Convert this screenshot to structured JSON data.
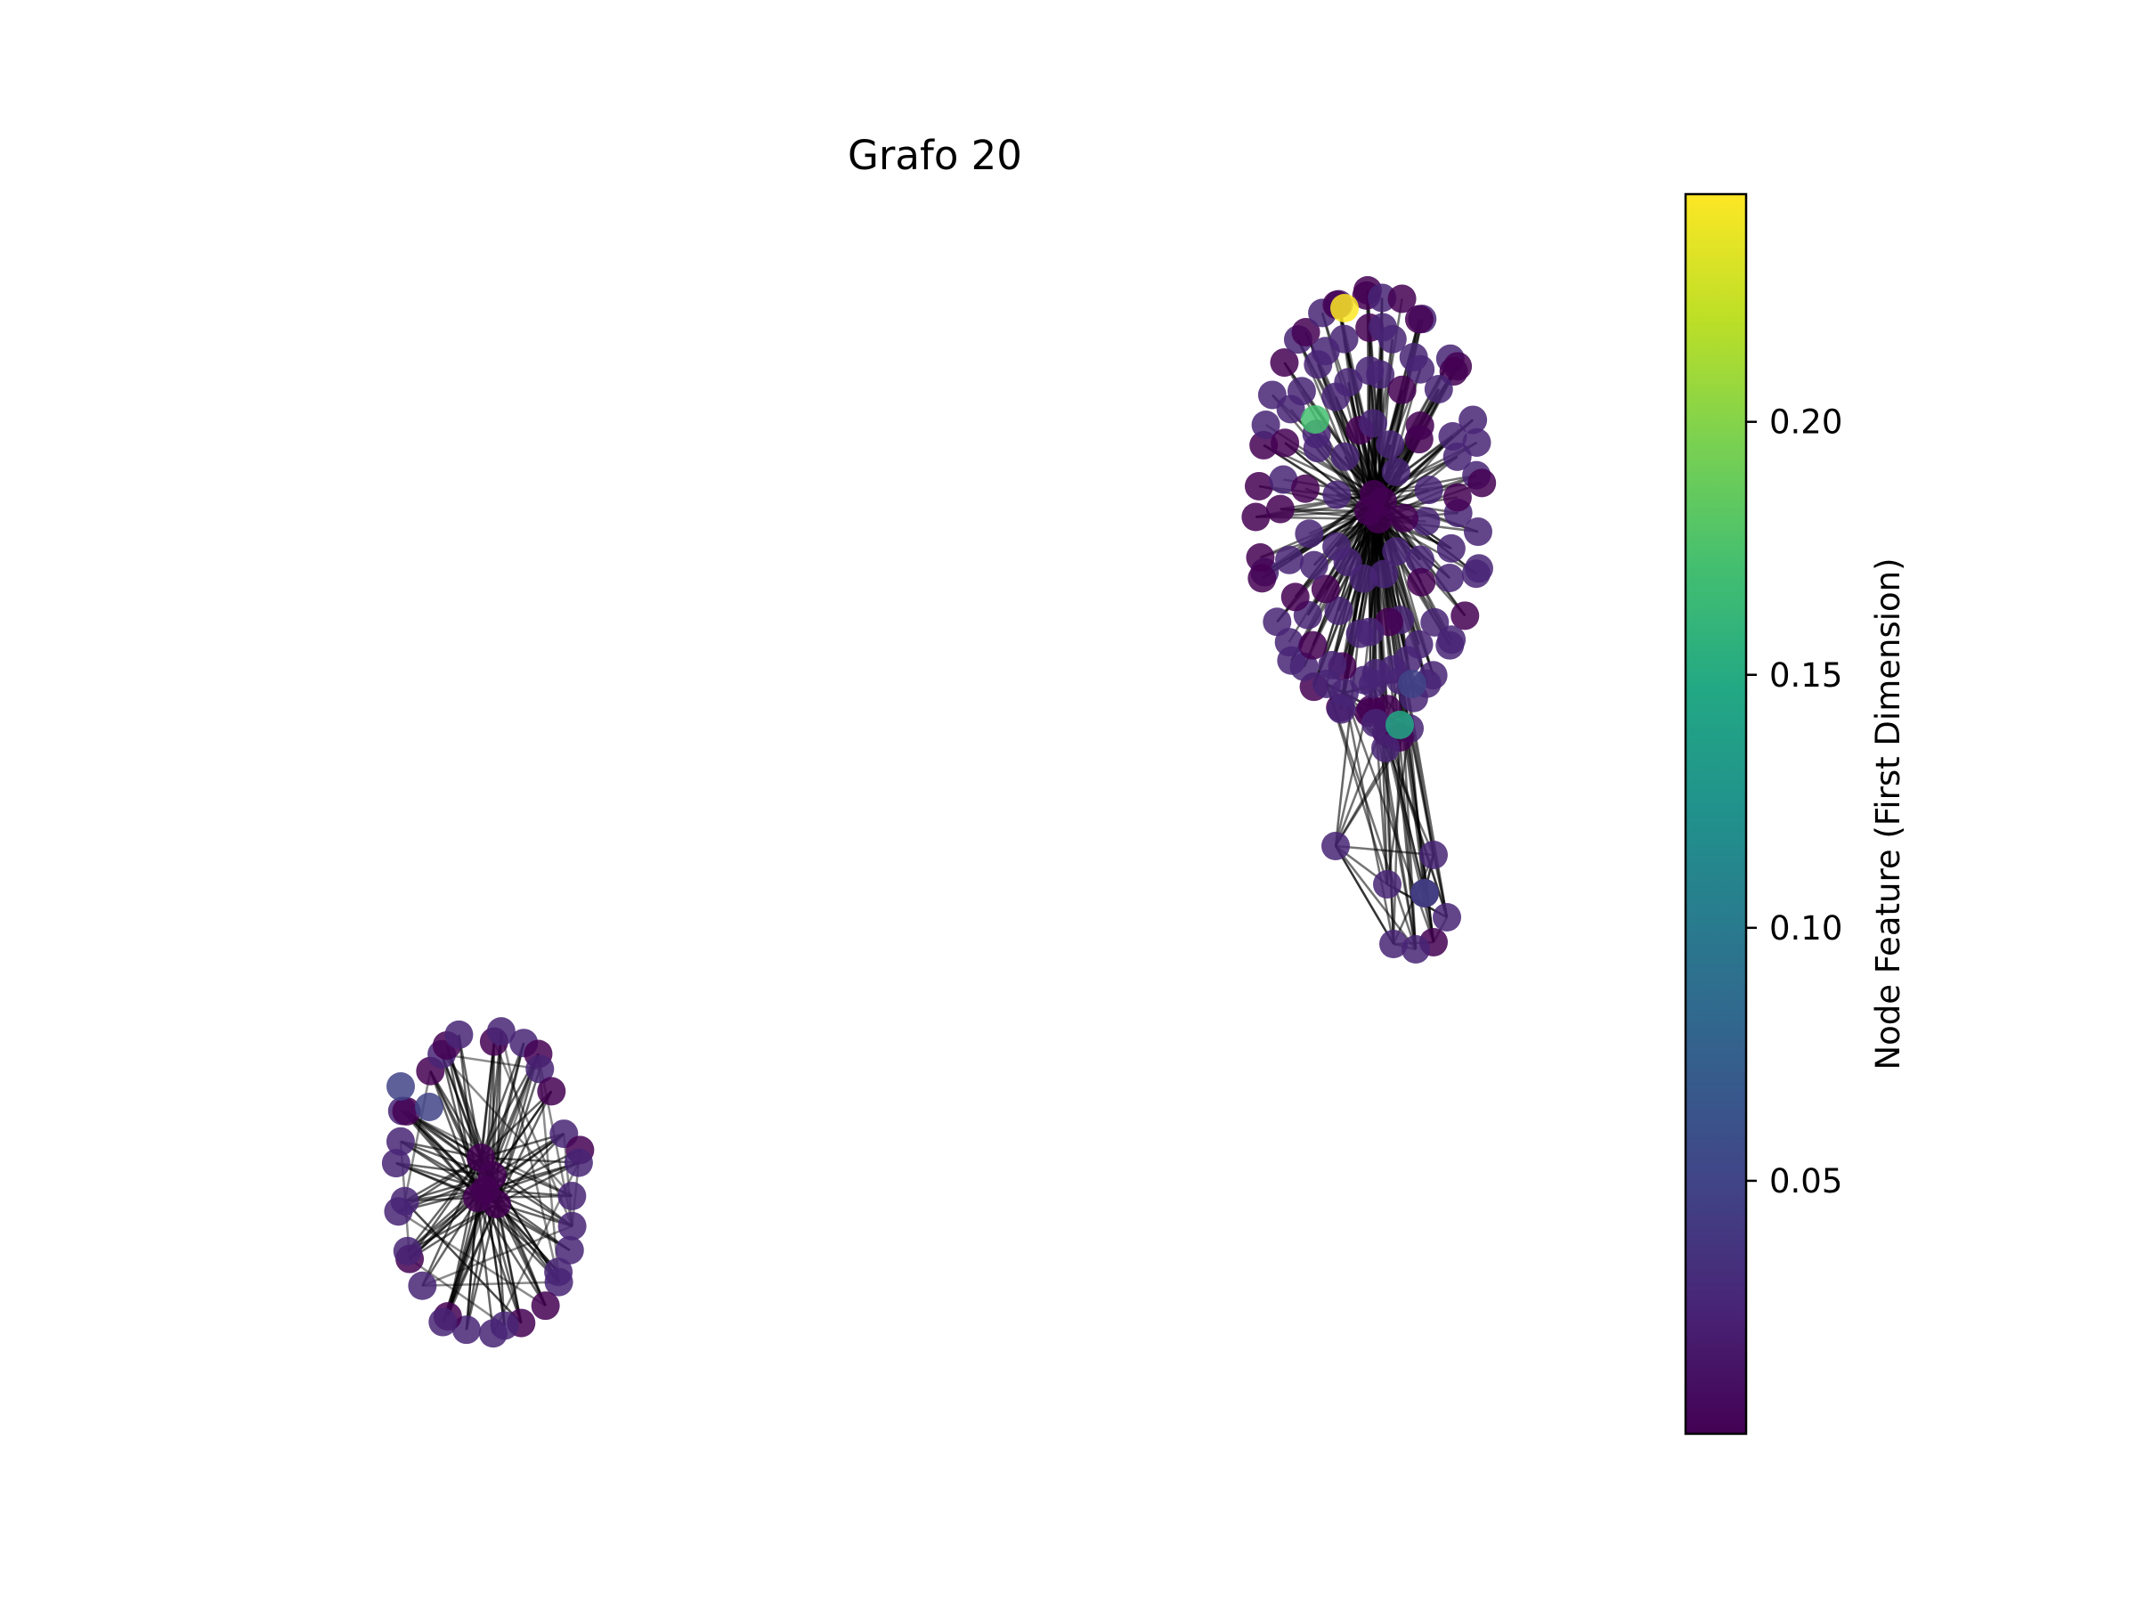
{
  "title": "Grafo 20",
  "colorbar": {
    "label": "Node Feature (First Dimension)",
    "ticks": [
      "0.05",
      "0.10",
      "0.15",
      "0.20"
    ],
    "tick_values": [
      0.05,
      0.1,
      0.15,
      0.2
    ],
    "range": [
      0.0,
      0.245
    ],
    "colormap": "viridis"
  },
  "colors": {
    "edge": "#000000",
    "node_default": "#440154"
  },
  "graph": {
    "components": [
      {
        "name": "large-component",
        "node_count_approx": 140,
        "notable_node_values": [
          0.245,
          0.16,
          0.14,
          0.05
        ]
      },
      {
        "name": "small-component",
        "node_count_approx": 45,
        "notable_node_values": [
          0.05,
          0.04
        ]
      }
    ]
  }
}
